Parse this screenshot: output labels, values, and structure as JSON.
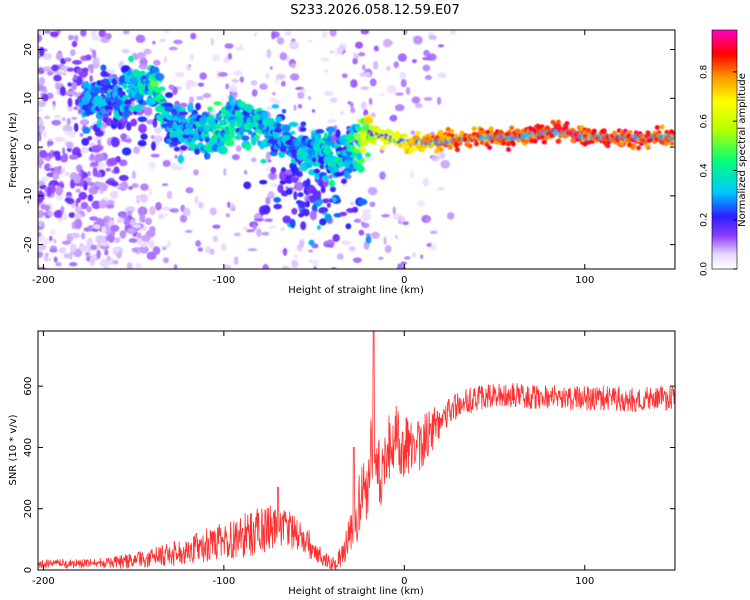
{
  "figure_title": "S233.2026.058.12.59.E07",
  "chart_data": [
    {
      "type": "heatmap",
      "title": "S233.2026.058.12.59.E07",
      "xlabel": "Height of straight line (km)",
      "ylabel": "Frequency (Hz)",
      "xlim": [
        -203,
        150
      ],
      "ylim": [
        -25,
        24
      ],
      "x_ticks": [
        -200,
        -100,
        0,
        100
      ],
      "x_tick_labels": [
        "-200",
        "-100",
        "0",
        "100"
      ],
      "y_ticks": [
        -20,
        -10,
        0,
        10,
        20
      ],
      "y_tick_labels": [
        "-20",
        "-10",
        "0",
        "10",
        "20"
      ],
      "colorbar": {
        "label": "Normalized spectral amplitude",
        "range": [
          0,
          0.97
        ],
        "ticks": [
          0.0,
          0.2,
          0.4,
          0.6,
          0.8
        ],
        "tick_labels": [
          "0.0",
          "0.2",
          "0.4",
          "0.6",
          "0.8"
        ]
      },
      "ridge": {
        "x": [
          -175,
          -160,
          -145,
          -138,
          -130,
          -120,
          -110,
          -100,
          -90,
          -80,
          -70,
          -60,
          -50,
          -40,
          -30,
          -25,
          -20,
          -10,
          0,
          10,
          20,
          40,
          60,
          80,
          90,
          100,
          110,
          120,
          130,
          150
        ],
        "y": [
          10,
          11,
          12,
          13,
          4,
          4,
          3,
          4,
          5,
          5,
          2,
          0,
          -1,
          -2,
          -1,
          1,
          3,
          2,
          1,
          1,
          1,
          2,
          2,
          3,
          3,
          2,
          2,
          2,
          2,
          2
        ],
        "amplitude": [
          0.25,
          0.3,
          0.35,
          0.4,
          0.3,
          0.3,
          0.35,
          0.4,
          0.35,
          0.35,
          0.3,
          0.3,
          0.3,
          0.35,
          0.3,
          0.5,
          0.6,
          0.7,
          0.75,
          0.8,
          0.85,
          0.9,
          0.9,
          0.92,
          0.95,
          0.9,
          0.9,
          0.92,
          0.92,
          0.92
        ]
      },
      "scatter_clusters": [
        {
          "x": -160,
          "y": 6,
          "amplitude": 0.2
        },
        {
          "x": -175,
          "y": -5,
          "amplitude": 0.15
        },
        {
          "x": -185,
          "y": 15,
          "amplitude": 0.15
        },
        {
          "x": -150,
          "y": -15,
          "amplitude": 0.1
        },
        {
          "x": -195,
          "y": -10,
          "amplitude": 0.15
        },
        {
          "x": -170,
          "y": -20,
          "amplitude": 0.1
        },
        {
          "x": -48,
          "y": -12,
          "amplitude": 0.3
        },
        {
          "x": -55,
          "y": -8,
          "amplitude": 0.2
        }
      ]
    },
    {
      "type": "line",
      "xlabel": "Height of straight line (km)",
      "ylabel": "SNR (10 * v/v)",
      "xlim": [
        -203,
        150
      ],
      "ylim": [
        0,
        780
      ],
      "x_ticks": [
        -200,
        -100,
        0,
        100
      ],
      "x_tick_labels": [
        "-200",
        "-100",
        "0",
        "100"
      ],
      "y_ticks": [
        0,
        200,
        400,
        600
      ],
      "y_tick_labels": [
        "0",
        "200",
        "400",
        "600"
      ],
      "series": [
        {
          "name": "SNR",
          "color": "#ff3030",
          "x": [
            -203,
            -190,
            -180,
            -170,
            -160,
            -150,
            -140,
            -130,
            -120,
            -110,
            -100,
            -90,
            -80,
            -70,
            -60,
            -50,
            -45,
            -40,
            -35,
            -30,
            -25,
            -20,
            -17,
            -15,
            -10,
            -5,
            0,
            5,
            10,
            15,
            20,
            25,
            30,
            40,
            50,
            60,
            70,
            80,
            90,
            100,
            110,
            120,
            130,
            140,
            150
          ],
          "mean": [
            20,
            20,
            20,
            22,
            25,
            30,
            40,
            50,
            65,
            80,
            95,
            110,
            130,
            140,
            120,
            70,
            40,
            20,
            40,
            100,
            200,
            300,
            450,
            300,
            380,
            430,
            400,
            400,
            420,
            450,
            500,
            520,
            540,
            560,
            570,
            570,
            565,
            565,
            560,
            560,
            560,
            560,
            555,
            560,
            560
          ],
          "noise": [
            15,
            15,
            15,
            15,
            20,
            25,
            30,
            40,
            45,
            55,
            60,
            70,
            80,
            70,
            60,
            40,
            25,
            20,
            40,
            80,
            110,
            130,
            160,
            130,
            120,
            110,
            110,
            100,
            90,
            80,
            60,
            50,
            45,
            40,
            40,
            40,
            40,
            40,
            40,
            40,
            40,
            40,
            40,
            40,
            40
          ],
          "peaks": [
            {
              "x": -17,
              "y": 780
            },
            {
              "x": -28,
              "y": 400
            },
            {
              "x": -70,
              "y": 270
            }
          ]
        }
      ]
    }
  ]
}
